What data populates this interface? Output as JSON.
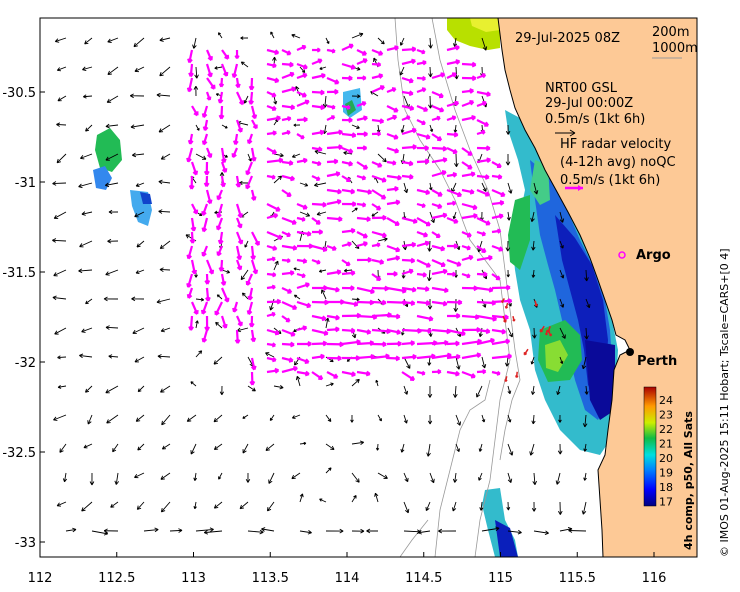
{
  "map": {
    "date_label": "29-Jul-2025 08Z",
    "depth_label_1": "200m",
    "depth_label_2": "1000m",
    "model_label": "NRT00 GSL",
    "model_time": "29-Jul 00:00Z",
    "model_scale": "0.5m/s (1kt 6h)",
    "radar_label_1": "HF radar velocity",
    "radar_label_2": "(4-12h avg) noQC",
    "radar_scale": "0.5m/s (1kt 6h)",
    "argo_label": "Argo",
    "city_label": "Perth",
    "credit": "© IMOS 01-Aug-2025 15:11 Hobart; Tscale=CARS+[0 4]",
    "colorbar_title": "4h comp, p50, All Sats",
    "colorbar_ticks": [
      "24",
      "23",
      "22",
      "21",
      "20",
      "19",
      "18",
      "17"
    ],
    "x_ticks": [
      "112",
      "112.5",
      "113",
      "113.5",
      "114",
      "114.5",
      "115",
      "115.5",
      "116"
    ],
    "y_ticks": [
      "-30.5",
      "-31",
      "-31.5",
      "-32",
      "-32.5",
      "-33"
    ],
    "x_tick_values": [
      112,
      112.5,
      113,
      113.5,
      114,
      114.5,
      115,
      115.5,
      116
    ],
    "y_tick_values": [
      -30.5,
      -31,
      -31.5,
      -32,
      -32.5,
      -33
    ],
    "colors": {
      "land": "#fdc996",
      "radar_arrows": "#ff00ff",
      "model_arrows": "#000000",
      "isobath": "#999999"
    }
  }
}
